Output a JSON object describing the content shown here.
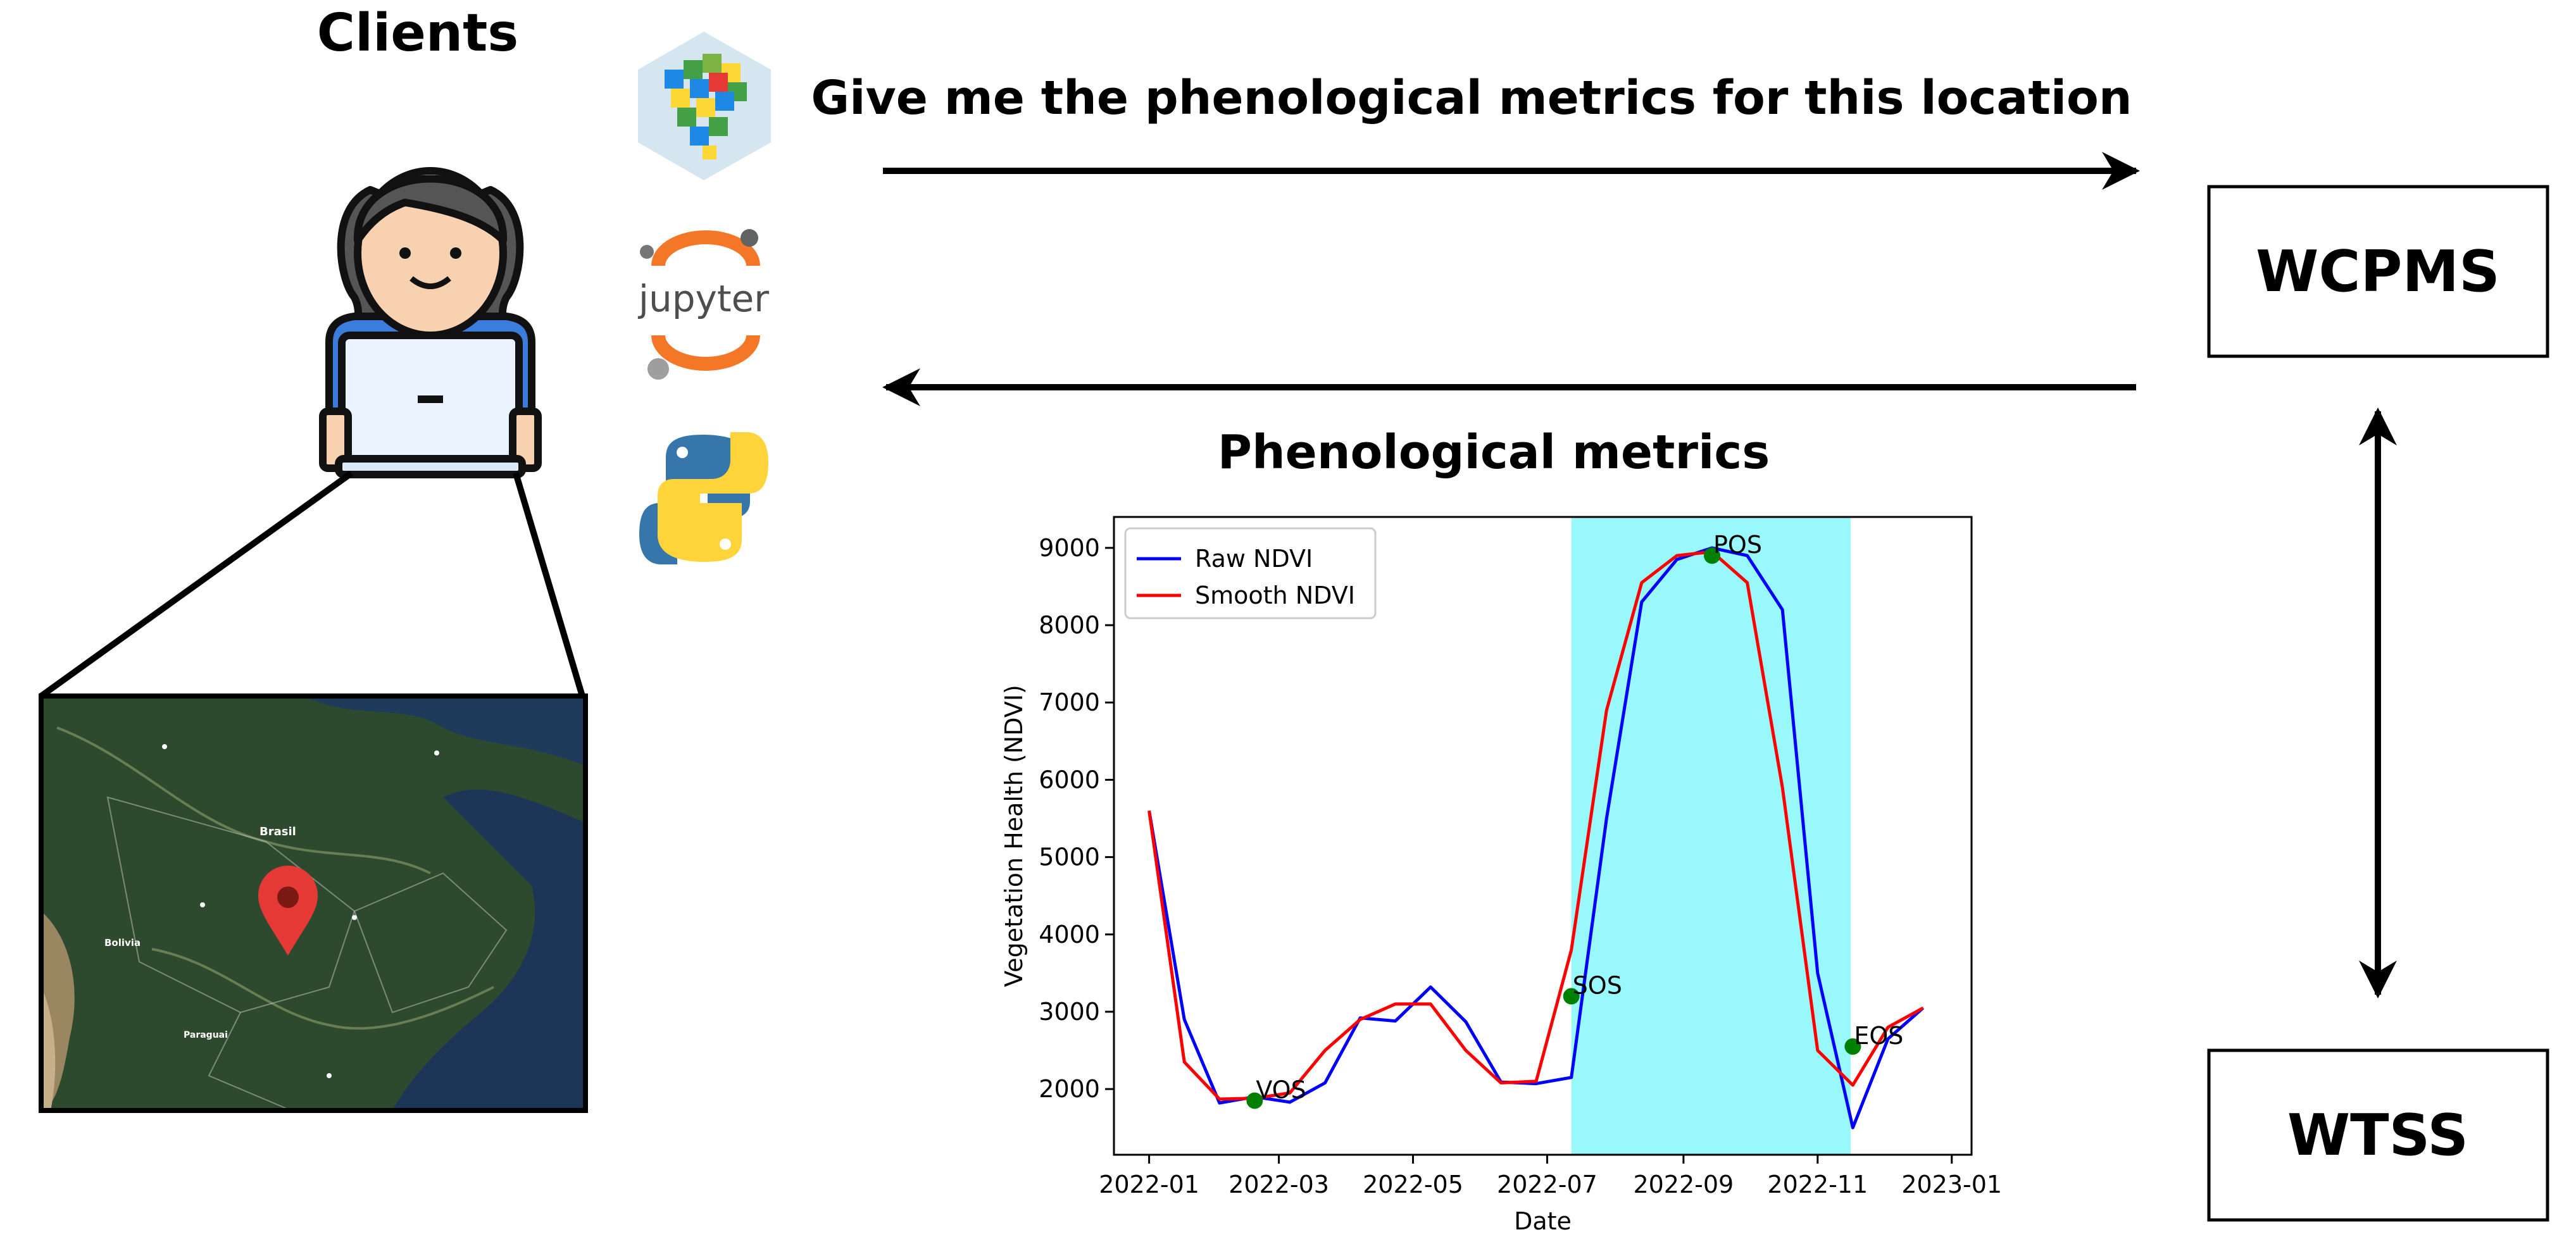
{
  "clients_title": "Clients",
  "request_label": "Give me the phenological metrics for this location",
  "response_label": "Phenological metrics",
  "server_box_label": "WCPMS",
  "backend_box_label": "WTSS",
  "client_tools": [
    "data-cube-icon",
    "jupyter-logo",
    "python-logo"
  ],
  "jupyter_text": "jupyter",
  "map_labels": {
    "country": "Brasil",
    "neighbor": "Bolivia",
    "paraguay": "Paraguai"
  },
  "colors": {
    "raw_series": "#0000ff",
    "smooth_series": "#ff0000",
    "season_band": "#00eef5",
    "metric_point": "#008000",
    "map_pin": "#e53935",
    "jupyter_orange": "#f37726",
    "python_blue": "#3776ab",
    "python_yellow": "#ffd43b"
  },
  "chart_data": {
    "type": "line",
    "xlabel": "Date",
    "ylabel": "Vegetation Health (NDVI)",
    "xlim": [
      "2021-12-16",
      "2023-01-10"
    ],
    "ylim": [
      1150,
      9400
    ],
    "x_ticks": [
      "2022-01",
      "2022-03",
      "2022-05",
      "2022-07",
      "2022-09",
      "2022-11",
      "2023-01"
    ],
    "y_ticks": [
      2000,
      3000,
      4000,
      5000,
      6000,
      7000,
      8000,
      9000
    ],
    "grid": false,
    "legend_position": "top-left",
    "season_band": [
      "2022-07-12",
      "2022-11-16"
    ],
    "series": [
      {
        "name": "Raw NDVI",
        "color": "#0000ff",
        "x": [
          "2022-01-01",
          "2022-01-17",
          "2022-02-02",
          "2022-02-18",
          "2022-03-06",
          "2022-03-22",
          "2022-04-07",
          "2022-04-23",
          "2022-05-09",
          "2022-05-25",
          "2022-06-10",
          "2022-06-26",
          "2022-07-12",
          "2022-07-28",
          "2022-08-13",
          "2022-08-29",
          "2022-09-14",
          "2022-09-30",
          "2022-10-16",
          "2022-11-01",
          "2022-11-17",
          "2022-12-03",
          "2022-12-19"
        ],
        "y": [
          5600,
          2900,
          1820,
          1900,
          1830,
          2080,
          2920,
          2880,
          3320,
          2870,
          2090,
          2070,
          2150,
          5500,
          8300,
          8850,
          9000,
          8900,
          8200,
          3500,
          1500,
          2650,
          3050
        ]
      },
      {
        "name": "Smooth NDVI",
        "color": "#ff0000",
        "x": [
          "2022-01-01",
          "2022-01-17",
          "2022-02-02",
          "2022-02-18",
          "2022-03-06",
          "2022-03-22",
          "2022-04-07",
          "2022-04-23",
          "2022-05-09",
          "2022-05-25",
          "2022-06-10",
          "2022-06-26",
          "2022-07-12",
          "2022-07-28",
          "2022-08-13",
          "2022-08-29",
          "2022-09-14",
          "2022-09-30",
          "2022-10-16",
          "2022-11-01",
          "2022-11-17",
          "2022-12-03",
          "2022-12-19"
        ],
        "y": [
          5600,
          2350,
          1870,
          1880,
          1950,
          2500,
          2900,
          3100,
          3100,
          2500,
          2080,
          2100,
          3800,
          6900,
          8550,
          8900,
          8950,
          8550,
          5900,
          2500,
          2050,
          2800,
          3050
        ]
      }
    ],
    "annotations": [
      {
        "label": "VOS",
        "x": "2022-02-18",
        "y": 1850
      },
      {
        "label": "SOS",
        "x": "2022-07-12",
        "y": 3200
      },
      {
        "label": "POS",
        "x": "2022-09-14",
        "y": 8900
      },
      {
        "label": "EOS",
        "x": "2022-11-17",
        "y": 2550
      }
    ]
  }
}
